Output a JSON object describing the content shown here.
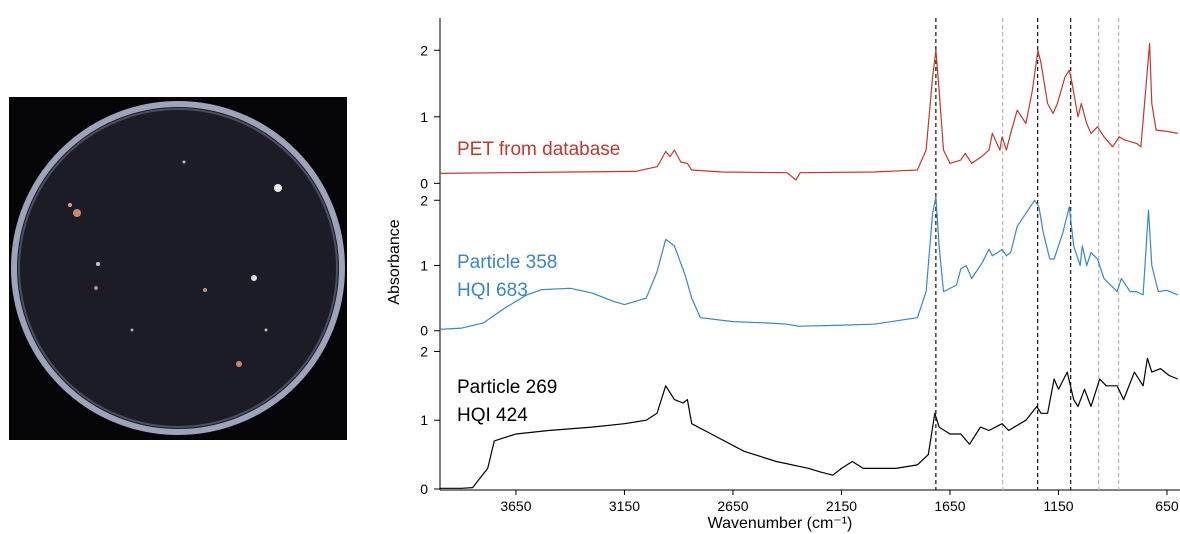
{
  "chart_data": [
    {
      "type": "line",
      "xlim": [
        4000,
        590
      ],
      "ylim": [
        -0.1,
        2.5
      ],
      "yticks": [
        0,
        1,
        2
      ],
      "x": [
        4000,
        3700,
        3400,
        3100,
        3000,
        2990,
        2960,
        2940,
        2920,
        2890,
        2860,
        2840,
        2700,
        2400,
        2360,
        2340,
        2000,
        1800,
        1760,
        1730,
        1715,
        1700,
        1680,
        1650,
        1600,
        1580,
        1550,
        1505,
        1470,
        1455,
        1420,
        1410,
        1390,
        1370,
        1340,
        1300,
        1270,
        1245,
        1230,
        1200,
        1175,
        1155,
        1120,
        1100,
        1090,
        1060,
        1045,
        1020,
        1000,
        970,
        940,
        900,
        870,
        845,
        790,
        770,
        730,
        720,
        700,
        650,
        600
      ],
      "series": [
        {
          "name": "PET from database",
          "color": "#c0392b",
          "values": [
            0.15,
            0.16,
            0.17,
            0.18,
            0.25,
            0.3,
            0.48,
            0.4,
            0.5,
            0.32,
            0.3,
            0.2,
            0.17,
            0.16,
            0.05,
            0.16,
            0.17,
            0.2,
            0.5,
            1.6,
            2.0,
            1.4,
            0.5,
            0.3,
            0.35,
            0.45,
            0.3,
            0.4,
            0.5,
            0.75,
            0.5,
            0.7,
            0.5,
            0.75,
            1.1,
            0.9,
            1.4,
            2.0,
            1.8,
            1.2,
            1.05,
            1.2,
            1.6,
            1.7,
            1.55,
            1.0,
            1.2,
            0.9,
            0.75,
            0.85,
            0.7,
            0.55,
            0.7,
            0.65,
            0.6,
            0.55,
            2.1,
            1.2,
            0.8,
            0.78,
            0.75
          ]
        }
      ],
      "reference_lines": [
        {
          "x": 1715,
          "color": "#222222"
        },
        {
          "x": 1407,
          "color": "#bbbbbb"
        },
        {
          "x": 1246,
          "color": "#222222"
        },
        {
          "x": 1094,
          "color": "#222222"
        },
        {
          "x": 965,
          "color": "#bbbbbb"
        },
        {
          "x": 873,
          "color": "#bbbbbb"
        }
      ]
    },
    {
      "type": "line",
      "xlim": [
        4000,
        590
      ],
      "ylim": [
        -0.05,
        2.05
      ],
      "yticks": [
        0,
        1,
        2
      ],
      "ylabel": "Absorbance",
      "annotation": "HQI 683",
      "x": [
        4000,
        3900,
        3800,
        3700,
        3600,
        3530,
        3400,
        3300,
        3200,
        3150,
        3100,
        3050,
        3000,
        2960,
        2920,
        2870,
        2840,
        2800,
        2650,
        2500,
        2400,
        2350,
        2200,
        2000,
        1800,
        1760,
        1730,
        1715,
        1700,
        1680,
        1620,
        1600,
        1575,
        1550,
        1500,
        1470,
        1455,
        1430,
        1410,
        1390,
        1370,
        1340,
        1300,
        1260,
        1240,
        1220,
        1190,
        1170,
        1130,
        1100,
        1080,
        1050,
        1040,
        1020,
        1000,
        970,
        940,
        880,
        860,
        820,
        790,
        760,
        735,
        720,
        690,
        650,
        600
      ],
      "series": [
        {
          "name": "Particle 358",
          "color": "#3a86c8",
          "values": [
            0.02,
            0.04,
            0.12,
            0.35,
            0.55,
            0.63,
            0.65,
            0.58,
            0.45,
            0.4,
            0.45,
            0.5,
            0.9,
            1.4,
            1.3,
            0.85,
            0.5,
            0.2,
            0.14,
            0.12,
            0.1,
            0.07,
            0.08,
            0.1,
            0.2,
            0.6,
            1.8,
            2.05,
            1.3,
            0.6,
            0.7,
            0.95,
            1.0,
            0.8,
            1.05,
            1.25,
            1.15,
            1.2,
            1.25,
            1.15,
            1.2,
            1.6,
            1.8,
            2.0,
            1.9,
            1.5,
            1.1,
            1.1,
            1.5,
            1.9,
            1.3,
            1.0,
            1.3,
            1.0,
            1.2,
            1.1,
            0.8,
            0.6,
            0.8,
            0.6,
            0.6,
            0.55,
            1.85,
            1.0,
            0.6,
            0.62,
            0.55
          ]
        }
      ]
    },
    {
      "type": "line",
      "xlim": [
        4000,
        590
      ],
      "ylim": [
        0,
        2.05
      ],
      "yticks": [
        0,
        1,
        2
      ],
      "xticks": [
        3650,
        3150,
        2650,
        2150,
        1650,
        1150,
        650
      ],
      "xlabel": "Wavenumber (cm⁻¹)",
      "annotation": "HQI 424",
      "x": [
        4000,
        3900,
        3850,
        3780,
        3750,
        3700,
        3650,
        3500,
        3300,
        3150,
        3050,
        3000,
        2960,
        2920,
        2880,
        2860,
        2840,
        2750,
        2600,
        2450,
        2300,
        2250,
        2190,
        2150,
        2100,
        2050,
        1900,
        1800,
        1750,
        1720,
        1700,
        1650,
        1600,
        1560,
        1510,
        1470,
        1410,
        1380,
        1300,
        1250,
        1230,
        1200,
        1170,
        1150,
        1110,
        1080,
        1060,
        1030,
        1000,
        960,
        930,
        880,
        850,
        800,
        760,
        740,
        720,
        680,
        640,
        600
      ],
      "series": [
        {
          "name": "Particle 269",
          "color": "#000000",
          "values": [
            0.01,
            0.01,
            0.02,
            0.3,
            0.7,
            0.75,
            0.8,
            0.85,
            0.9,
            0.95,
            1.0,
            1.1,
            1.5,
            1.3,
            1.25,
            1.3,
            0.95,
            0.8,
            0.55,
            0.4,
            0.3,
            0.25,
            0.2,
            0.3,
            0.4,
            0.3,
            0.3,
            0.35,
            0.5,
            1.1,
            0.9,
            0.8,
            0.8,
            0.65,
            0.9,
            0.85,
            0.95,
            0.85,
            1.0,
            1.2,
            1.1,
            1.1,
            1.6,
            1.45,
            1.7,
            1.3,
            1.2,
            1.45,
            1.2,
            1.6,
            1.5,
            1.5,
            1.3,
            1.7,
            1.5,
            1.9,
            1.7,
            1.75,
            1.65,
            1.6
          ]
        }
      ]
    }
  ]
}
